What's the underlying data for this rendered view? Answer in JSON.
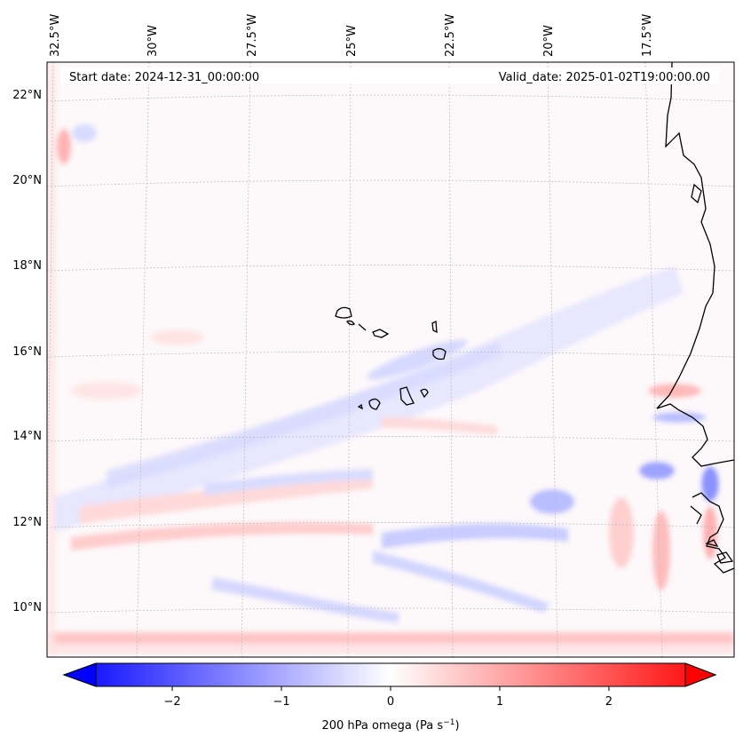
{
  "map": {
    "start_label": "Start date: 2024-12-31_00:00:00",
    "valid_label": "Valid_date: 2025-01-02T19:00:00.00",
    "lon_ticks": [
      "32.5°W",
      "30°W",
      "27.5°W",
      "25°W",
      "22.5°W",
      "20°W",
      "17.5°W"
    ],
    "lat_ticks": [
      "22°N",
      "20°N",
      "18°N",
      "16°N",
      "14°N",
      "12°N",
      "10°N"
    ],
    "gridlines": true,
    "field": "200 hPa omega",
    "colors": {
      "negative": "#0000ff",
      "zero": "#ffffff",
      "positive": "#ff0000",
      "coastline": "#000000",
      "grid": "#bbbbbb"
    }
  },
  "colorbar": {
    "label": "200 hPa omega (Pa s",
    "label_exp": "−1",
    "label_end": ")",
    "range": [
      -2.7,
      2.7
    ],
    "extend": "both",
    "ticks": [
      {
        "value": -2,
        "label": "−2"
      },
      {
        "value": -1,
        "label": "−1"
      },
      {
        "value": 0,
        "label": "0"
      },
      {
        "value": 1,
        "label": "1"
      },
      {
        "value": 2,
        "label": "2"
      }
    ]
  }
}
